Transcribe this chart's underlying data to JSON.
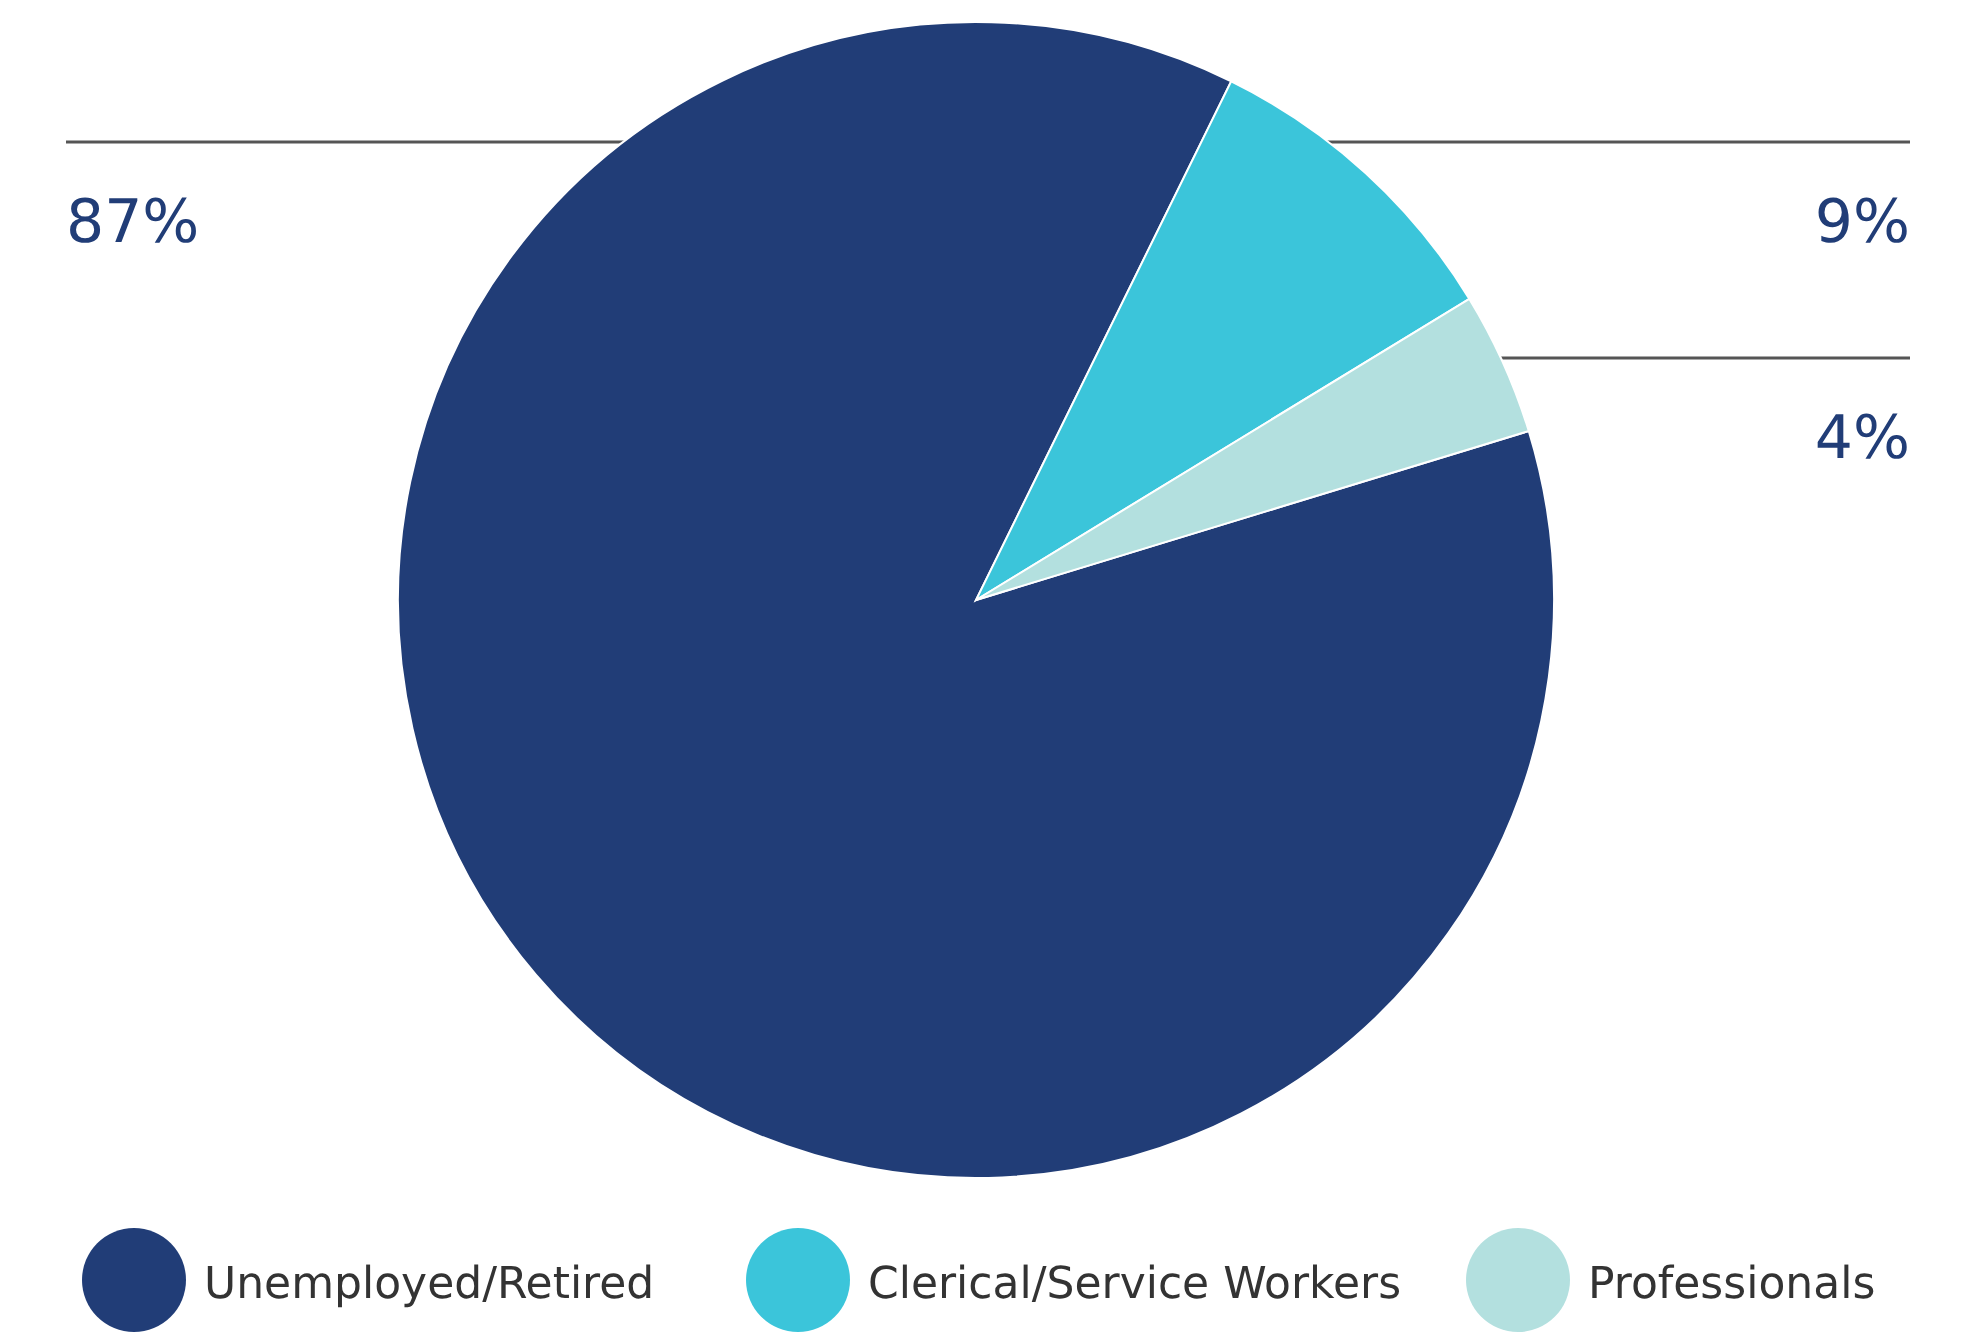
{
  "chart_data": {
    "type": "pie",
    "categories": [
      "Unemployed/Retired",
      "Clerical/Service Workers",
      "Professionals"
    ],
    "values": [
      87,
      9,
      4
    ],
    "colors": [
      "#213d77",
      "#3bc5da",
      "#b3e0df"
    ],
    "value_labels": [
      "87%",
      "9%",
      "4%"
    ],
    "legend": "bottom"
  }
}
